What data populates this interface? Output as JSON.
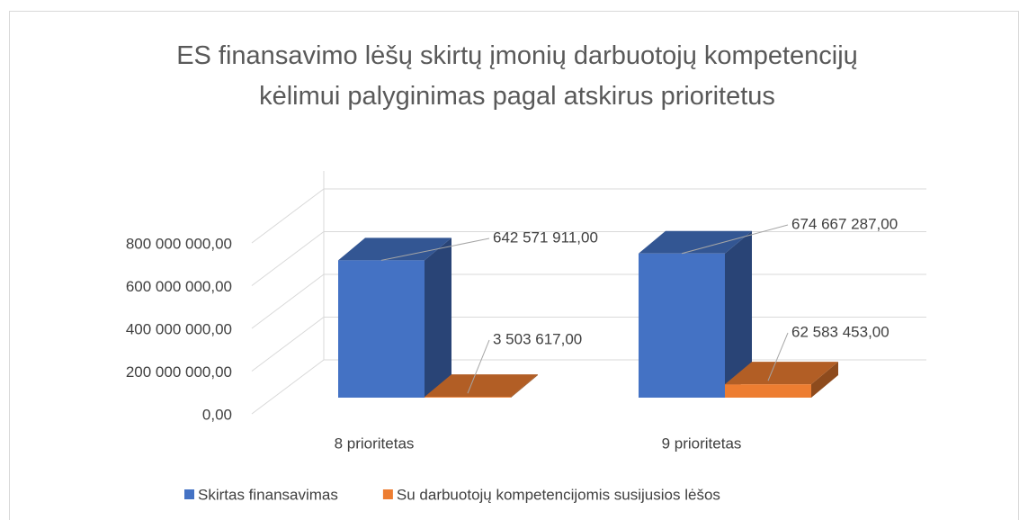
{
  "chart_data": {
    "type": "bar3d",
    "title": "ES finansavimo lėšų skirtų įmonių darbuotojų kompetencijų kėlimui palyginimas pagal atskirus prioritetus",
    "categories": [
      "8 prioritetas",
      "9 prioritetas"
    ],
    "series": [
      {
        "name": "Skirtas finansavimas",
        "color": "#4472c4",
        "values": [
          642571911,
          674667287
        ],
        "value_labels": [
          "642 571 911,00",
          "674 667 287,00"
        ]
      },
      {
        "name": "Su darbuotojų kompetencijomis susijusios lėšos",
        "color": "#ed7d31",
        "values": [
          3503617,
          62583453
        ],
        "value_labels": [
          "3 503 617,00",
          "62 583 453,00"
        ]
      }
    ],
    "ylim": [
      0,
      800000000
    ],
    "yticks": [
      {
        "value": 0,
        "label": "0,00"
      },
      {
        "value": 200000000,
        "label": "200 000 000,00"
      },
      {
        "value": 400000000,
        "label": "400 000 000,00"
      },
      {
        "value": 600000000,
        "label": "600 000 000,00"
      },
      {
        "value": 800000000,
        "label": "800 000 000,00"
      }
    ],
    "grid": true,
    "legend": "bottom"
  }
}
